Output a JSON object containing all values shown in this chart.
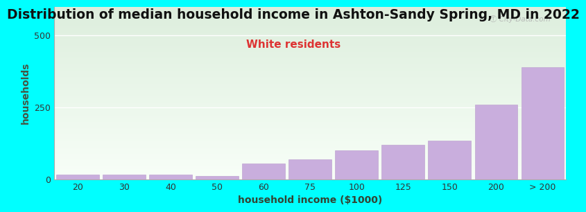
{
  "title": "Distribution of median household income in Ashton-Sandy Spring, MD in 2022",
  "subtitle": "White residents",
  "xlabel": "household income ($1000)",
  "ylabel": "households",
  "background_color": "#00FFFF",
  "bar_color": "#c9aedd",
  "bar_edge_color": "#b899cc",
  "categories": [
    "20",
    "30",
    "40",
    "50",
    "60",
    "75",
    "100",
    "125",
    "150",
    "200",
    "> 200"
  ],
  "values": [
    15,
    15,
    15,
    10,
    55,
    70,
    100,
    120,
    135,
    260,
    390
  ],
  "ylim": [
    0,
    600
  ],
  "yticks": [
    0,
    250,
    500
  ],
  "title_fontsize": 13.5,
  "subtitle_fontsize": 11,
  "axis_label_fontsize": 10,
  "tick_fontsize": 9,
  "watermark_text": "Ⓣ City-Data.com",
  "title_color": "#111111",
  "subtitle_color": "#dd3333",
  "ylabel_color": "#445544",
  "xlabel_color": "#334433",
  "grad_top_color": "#ddeedd",
  "grad_bottom_color": "#f8fff8"
}
